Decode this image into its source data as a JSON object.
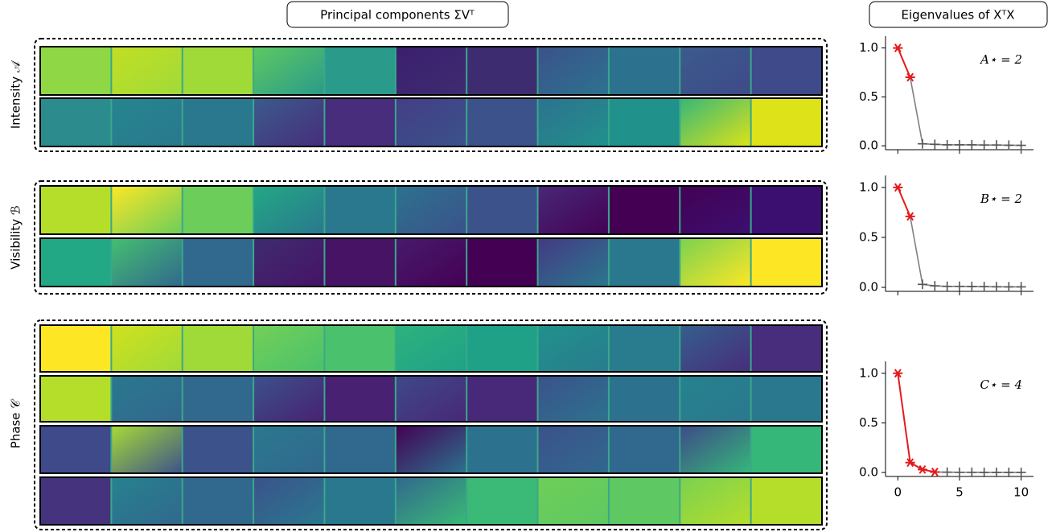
{
  "header": {
    "left_title": "Principal components ΣVᵀ",
    "right_title": "Eigenvalues of XᵀX"
  },
  "rows": [
    {
      "label": "Intensity 𝒜"
    },
    {
      "label": "Visibility ℬ"
    },
    {
      "label": "Phase 𝒞"
    }
  ],
  "chart_data": [
    {
      "type": "line",
      "annotation": "A⋆ = 2",
      "highlight_count": 2,
      "highlight_color": "#e41a1c",
      "rest_color": "#808080",
      "x": [
        0,
        1,
        2,
        3,
        4,
        5,
        6,
        7,
        8,
        9,
        10
      ],
      "values": [
        1.0,
        0.7,
        0.02,
        0.015,
        0.01,
        0.01,
        0.01,
        0.008,
        0.008,
        0.006,
        0.005
      ],
      "xlim": [
        -1,
        11
      ],
      "ylim": [
        -0.04,
        1.12
      ],
      "xticks": [
        0,
        5,
        10
      ],
      "show_xtick_labels": false,
      "yticks": [
        {
          "value": 0,
          "label": "0.0"
        },
        0.5,
        {
          "value": 1,
          "label": "1.0"
        }
      ]
    },
    {
      "type": "line",
      "annotation": "B⋆ = 2",
      "highlight_count": 2,
      "highlight_color": "#e41a1c",
      "rest_color": "#808080",
      "x": [
        0,
        1,
        2,
        3,
        4,
        5,
        6,
        7,
        8,
        9,
        10
      ],
      "values": [
        1.0,
        0.71,
        0.03,
        0.015,
        0.01,
        0.01,
        0.008,
        0.007,
        0.006,
        0.005,
        0.005
      ],
      "xlim": [
        -1,
        11
      ],
      "ylim": [
        -0.04,
        1.12
      ],
      "xticks": [
        0,
        5,
        10
      ],
      "show_xtick_labels": false,
      "yticks": [
        {
          "value": 0,
          "label": "0.0"
        },
        0.5,
        {
          "value": 1,
          "label": "1.0"
        }
      ]
    },
    {
      "type": "line",
      "annotation": "C⋆ = 4",
      "highlight_count": 4,
      "highlight_color": "#e41a1c",
      "rest_color": "#808080",
      "x": [
        0,
        1,
        2,
        3,
        4,
        5,
        6,
        7,
        8,
        9,
        10
      ],
      "values": [
        1.0,
        0.1,
        0.03,
        0.005,
        0.003,
        0.002,
        0.002,
        0.001,
        0.001,
        0.001,
        0.001
      ],
      "xlim": [
        -1,
        11
      ],
      "ylim": [
        -0.04,
        1.12
      ],
      "xticks": [
        0,
        5,
        10
      ],
      "show_xtick_labels": true,
      "yticks": [
        {
          "value": 0,
          "label": "0.0"
        },
        0.5,
        {
          "value": 1,
          "label": "1.0"
        }
      ]
    }
  ]
}
